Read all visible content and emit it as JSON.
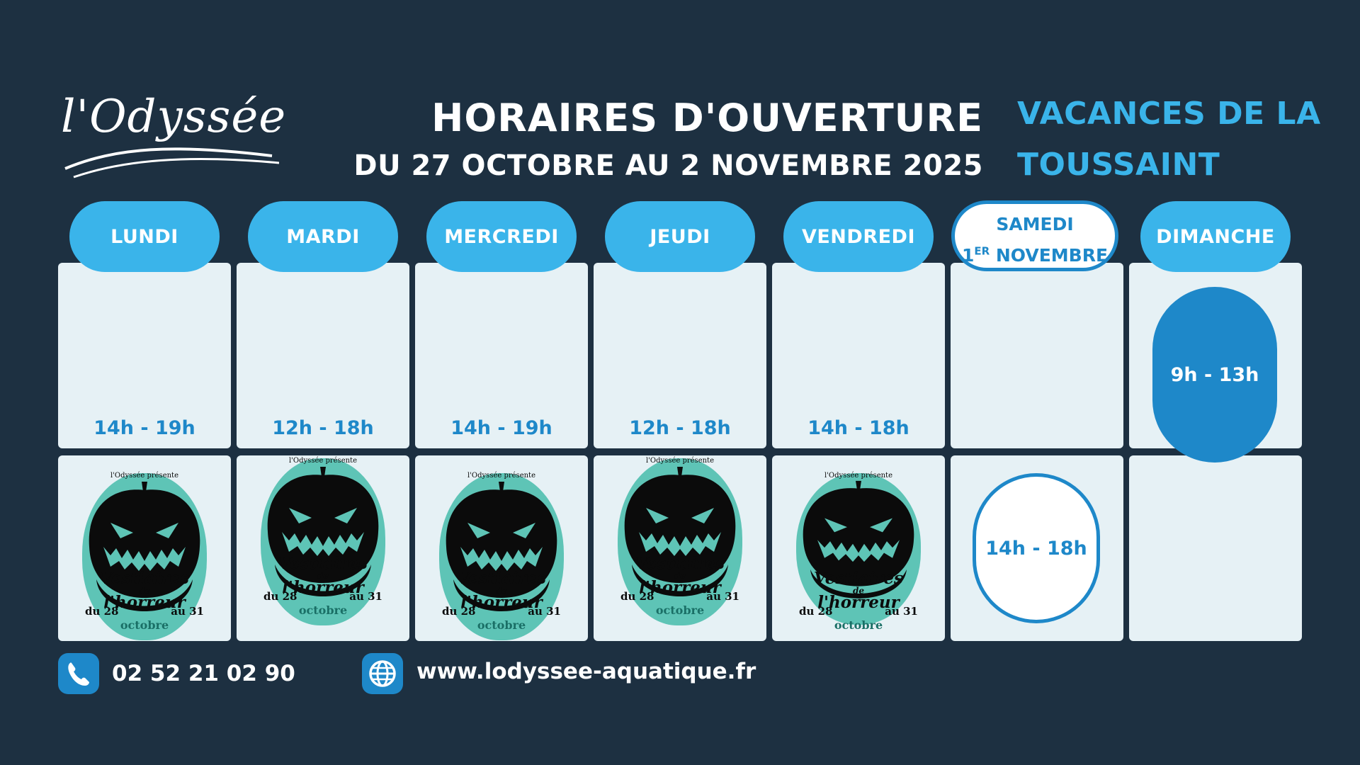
{
  "logo": {
    "text": "l'Odyssée"
  },
  "header": {
    "title": "HORAIRES D'OUVERTURE",
    "subtitle": "DU 27 OCTOBRE AU 2 NOVEMBRE 2025",
    "period": "VACANCES DE LA TOUSSAINT"
  },
  "days": [
    {
      "label": "LUNDI",
      "time": "14h - 19h"
    },
    {
      "label": "MARDI",
      "time": "12h - 18h"
    },
    {
      "label": "MERCREDI",
      "time": "14h - 19h"
    },
    {
      "label": "JEUDI",
      "time": "12h - 18h"
    },
    {
      "label": "VENDREDI",
      "time": "14h - 18h"
    },
    {
      "label_line1": "SAMEDI",
      "label_line2_num": "1",
      "label_line2_sup": "ER",
      "label_line2_rest": " NOVEMBRE",
      "time": "14h - 18h"
    },
    {
      "label": "DIMANCHE",
      "time": "9h - 13h"
    }
  ],
  "event": {
    "top": "l'Odyssée présente",
    "title_1": "Vestiaires",
    "title_de": "de",
    "title_2": "l'horreur",
    "from": "du 28",
    "to": "au 31",
    "month": "octobre"
  },
  "footer": {
    "phone": "02 52 21 02 90",
    "website": "www.lodyssee-aquatique.fr"
  },
  "colors": {
    "background": "#1d3041",
    "accent": "#3ab4ea",
    "accent_dark": "#1e88c9",
    "cell": "#e6f1f5",
    "poster": "#5ec4b6"
  }
}
